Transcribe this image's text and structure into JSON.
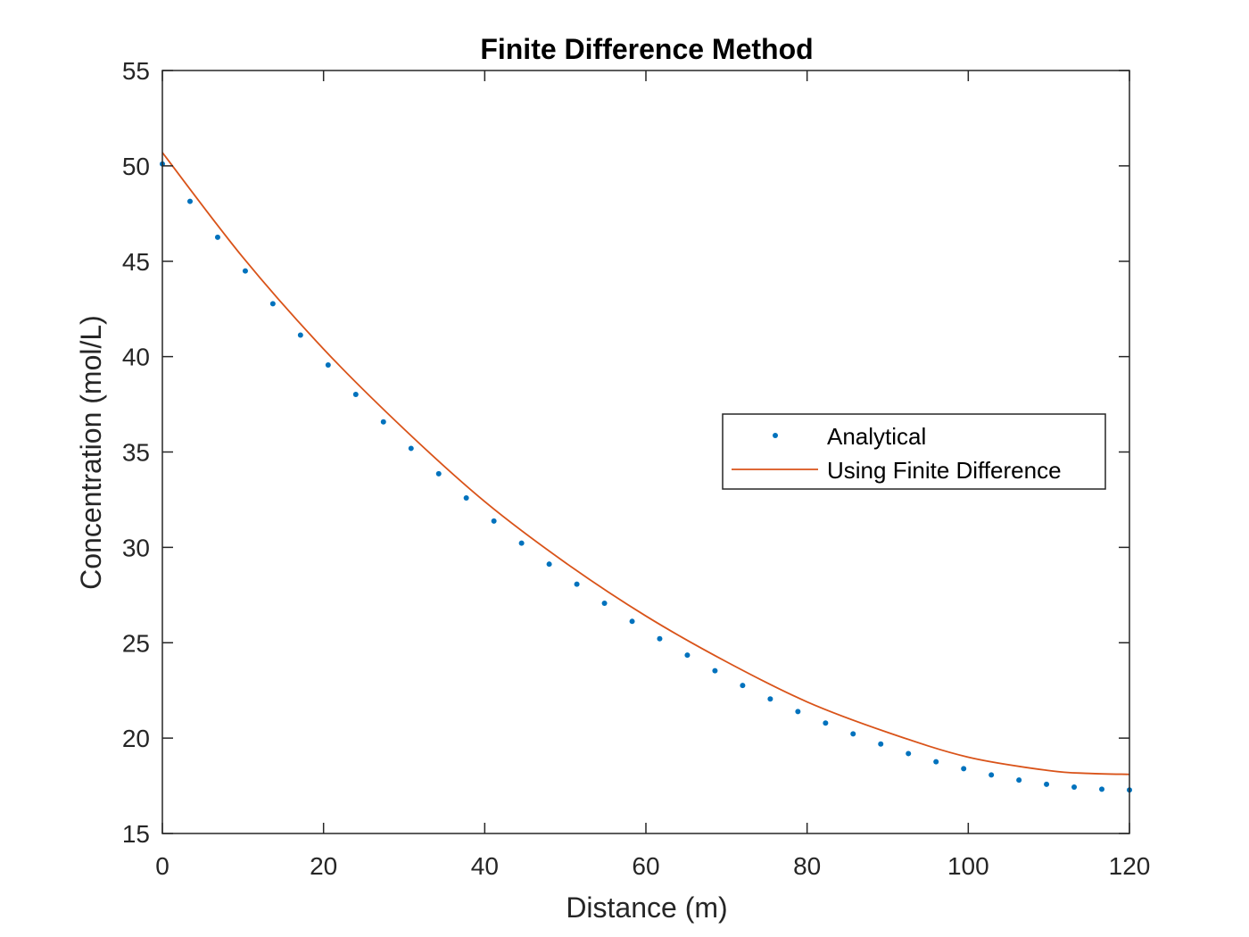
{
  "chart_data": {
    "type": "line",
    "title": "Finite Difference Method",
    "xlabel": "Distance (m)",
    "ylabel": "Concentration (mol/L)",
    "xlim": [
      0,
      120
    ],
    "ylim": [
      15,
      55
    ],
    "xticks": [
      0,
      20,
      40,
      60,
      80,
      100,
      120
    ],
    "yticks": [
      15,
      20,
      25,
      30,
      35,
      40,
      45,
      50,
      55
    ],
    "grid": false,
    "legend_position": "right",
    "series": [
      {
        "name": "Analytical",
        "style": "markers",
        "color": "#0072BD",
        "x": [
          0,
          3.43,
          6.86,
          10.29,
          13.71,
          17.14,
          20.57,
          24,
          27.43,
          30.86,
          34.29,
          37.71,
          41.14,
          44.57,
          48,
          51.43,
          54.86,
          58.29,
          61.71,
          65.14,
          68.57,
          72,
          75.43,
          78.86,
          82.29,
          85.71,
          89.14,
          92.57,
          96,
          99.43,
          102.86,
          106.29,
          109.71,
          113.14,
          116.57,
          120
        ],
        "y": [
          50.1,
          48.14,
          46.26,
          44.49,
          42.77,
          41.13,
          39.56,
          38.02,
          36.58,
          35.19,
          33.86,
          32.59,
          31.38,
          30.22,
          29.12,
          28.07,
          27.07,
          26.12,
          25.21,
          24.35,
          23.53,
          22.76,
          22.05,
          21.39,
          20.79,
          20.22,
          19.69,
          19.19,
          18.76,
          18.4,
          18.07,
          17.8,
          17.58,
          17.43,
          17.32,
          17.28
        ]
      },
      {
        "name": "Using Finite Difference",
        "style": "line",
        "color": "#D95319",
        "x": [
          0,
          10,
          20,
          30,
          40,
          50,
          60,
          70,
          80,
          90,
          100,
          110,
          115,
          120
        ],
        "y": [
          50.7,
          45.2,
          40.4,
          36.2,
          32.4,
          29.2,
          26.4,
          24.0,
          21.9,
          20.3,
          19.0,
          18.3,
          18.15,
          18.1
        ]
      }
    ]
  }
}
